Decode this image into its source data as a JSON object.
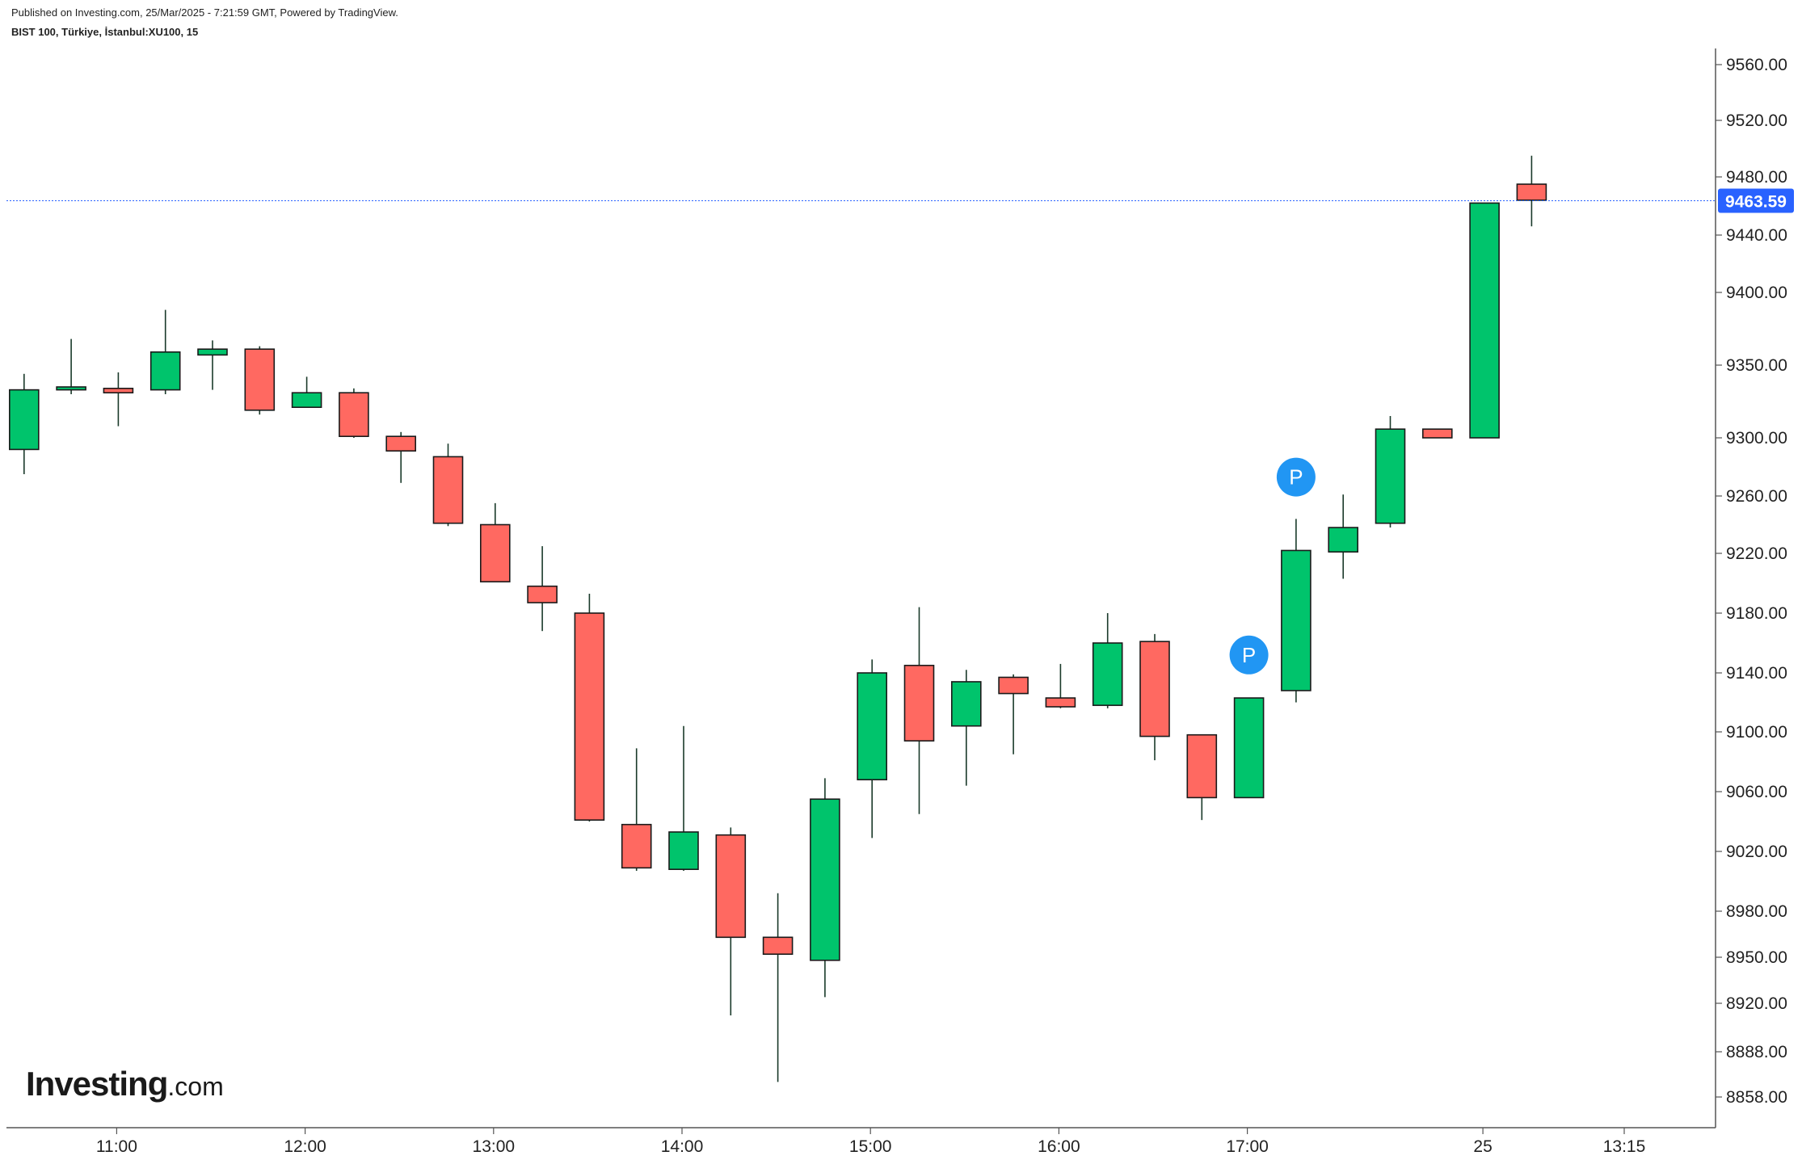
{
  "header": {
    "published": "Published on Investing.com, 25/Mar/2025 - 7:21:59 GMT, Powered by TradingView.",
    "symbol": "BIST 100, Türkiye, İstanbul:XU100, 15"
  },
  "logo": {
    "brand": "Investing",
    "suffix": ".com"
  },
  "colors": {
    "up": "#00c46c",
    "down": "#ff6961",
    "wick": "#1a3a2a",
    "last_price_bg": "#2962ff",
    "price_line": "#2962ff",
    "marker": "#2196f3"
  },
  "chart_data": {
    "type": "candlestick",
    "title": "",
    "xlabel": "",
    "ylabel": "",
    "ylim": [
      8840,
      9575
    ],
    "y_ticks": [
      "9560.00",
      "9520.00",
      "9480.00",
      "9440.00",
      "9400.00",
      "9350.00",
      "9300.00",
      "9260.00",
      "9220.00",
      "9180.00",
      "9140.00",
      "9100.00",
      "9060.00",
      "9020.00",
      "8980.00",
      "8950.00",
      "8920.00",
      "8888.00",
      "8858.00"
    ],
    "x_ticks": [
      {
        "label": "11:00",
        "index": 2
      },
      {
        "label": "12:00",
        "index": 6
      },
      {
        "label": "13:00",
        "index": 10
      },
      {
        "label": "14:00",
        "index": 14
      },
      {
        "label": "15:00",
        "index": 18
      },
      {
        "label": "16:00",
        "index": 22
      },
      {
        "label": "17:00",
        "index": 26
      },
      {
        "label": "25",
        "index": 31
      },
      {
        "label": "13:15",
        "index": 34
      }
    ],
    "candles": [
      {
        "o": 9292,
        "h": 9344,
        "l": 9275,
        "c": 9333
      },
      {
        "o": 9333,
        "h": 9368,
        "l": 9330,
        "c": 9335
      },
      {
        "o": 9334,
        "h": 9345,
        "l": 9308,
        "c": 9331
      },
      {
        "o": 9333,
        "h": 9388,
        "l": 9330,
        "c": 9359
      },
      {
        "o": 9357,
        "h": 9367,
        "l": 9333,
        "c": 9361
      },
      {
        "o": 9361,
        "h": 9363,
        "l": 9316,
        "c": 9319
      },
      {
        "o": 9321,
        "h": 9342,
        "l": 9321,
        "c": 9331
      },
      {
        "o": 9331,
        "h": 9334,
        "l": 9300,
        "c": 9301
      },
      {
        "o": 9301,
        "h": 9304,
        "l": 9269,
        "c": 9291
      },
      {
        "o": 9287,
        "h": 9296,
        "l": 9239,
        "c": 9241
      },
      {
        "o": 9240,
        "h": 9255,
        "l": 9201,
        "c": 9201
      },
      {
        "o": 9198,
        "h": 9225,
        "l": 9168,
        "c": 9187
      },
      {
        "o": 9180,
        "h": 9193,
        "l": 9040,
        "c": 9041
      },
      {
        "o": 9038,
        "h": 9089,
        "l": 9007,
        "c": 9009
      },
      {
        "o": 9008,
        "h": 9104,
        "l": 9007,
        "c": 9033
      },
      {
        "o": 9031,
        "h": 9036,
        "l": 8912,
        "c": 8963
      },
      {
        "o": 8963,
        "h": 8992,
        "l": 8868,
        "c": 8952
      },
      {
        "o": 8948,
        "h": 9069,
        "l": 8924,
        "c": 9055
      },
      {
        "o": 9068,
        "h": 9149,
        "l": 9029,
        "c": 9140
      },
      {
        "o": 9145,
        "h": 9184,
        "l": 9045,
        "c": 9094
      },
      {
        "o": 9104,
        "h": 9142,
        "l": 9064,
        "c": 9134
      },
      {
        "o": 9137,
        "h": 9139,
        "l": 9085,
        "c": 9126
      },
      {
        "o": 9123,
        "h": 9146,
        "l": 9116,
        "c": 9117
      },
      {
        "o": 9118,
        "h": 9180,
        "l": 9116,
        "c": 9160
      },
      {
        "o": 9161,
        "h": 9166,
        "l": 9081,
        "c": 9097
      },
      {
        "o": 9098,
        "h": 9098,
        "l": 9041,
        "c": 9056
      },
      {
        "o": 9056,
        "h": 9123,
        "l": 9056,
        "c": 9123
      },
      {
        "o": 9128,
        "h": 9244,
        "l": 9120,
        "c": 9222
      },
      {
        "o": 9221,
        "h": 9261,
        "l": 9203,
        "c": 9238
      },
      {
        "o": 9241,
        "h": 9315,
        "l": 9238,
        "c": 9306
      },
      {
        "o": 9306,
        "h": 9306,
        "l": 9300,
        "c": 9300
      },
      {
        "o": 9300,
        "h": 9462,
        "l": 9300,
        "c": 9462
      },
      {
        "o": 9475,
        "h": 9495,
        "l": 9446,
        "c": 9464
      }
    ],
    "last_price": {
      "value": 9463.59,
      "label": "9463.59"
    },
    "markers": [
      {
        "label": "P",
        "index": 26,
        "price": 9152
      },
      {
        "label": "P",
        "index": 27,
        "price": 9273
      }
    ]
  }
}
